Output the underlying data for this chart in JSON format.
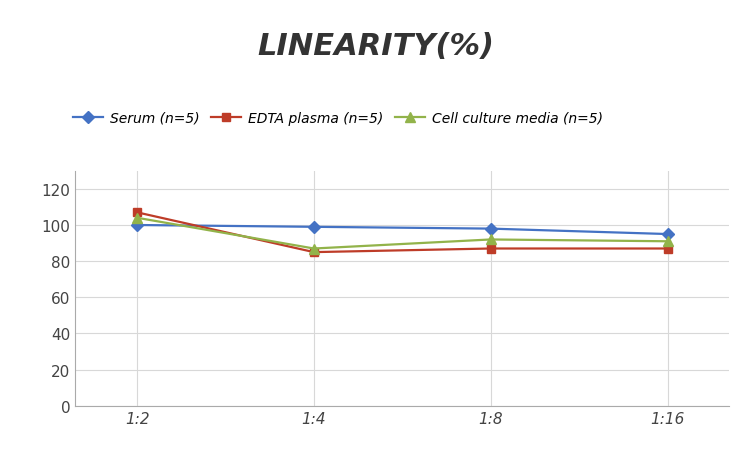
{
  "title": "LINEARITY(%)",
  "x_labels": [
    "1:2",
    "1:4",
    "1:8",
    "1:16"
  ],
  "x_positions": [
    0,
    1,
    2,
    3
  ],
  "series": [
    {
      "label": "Serum (n=5)",
      "values": [
        100,
        99,
        98,
        95
      ],
      "color": "#4472C4",
      "marker": "D",
      "markersize": 6,
      "linestyle": "-"
    },
    {
      "label": "EDTA plasma (n=5)",
      "values": [
        107,
        85,
        87,
        87
      ],
      "color": "#BE3C28",
      "marker": "s",
      "markersize": 6,
      "linestyle": "-"
    },
    {
      "label": "Cell culture media (n=5)",
      "values": [
        104,
        87,
        92,
        91
      ],
      "color": "#92B34A",
      "marker": "^",
      "markersize": 7,
      "linestyle": "-"
    }
  ],
  "ylim": [
    0,
    130
  ],
  "yticks": [
    0,
    20,
    40,
    60,
    80,
    100,
    120
  ],
  "title_fontsize": 22,
  "title_style": "italic",
  "title_weight": "bold",
  "legend_fontsize": 10,
  "tick_fontsize": 11,
  "background_color": "#ffffff",
  "grid_color": "#d8d8d8",
  "linewidth": 1.6
}
